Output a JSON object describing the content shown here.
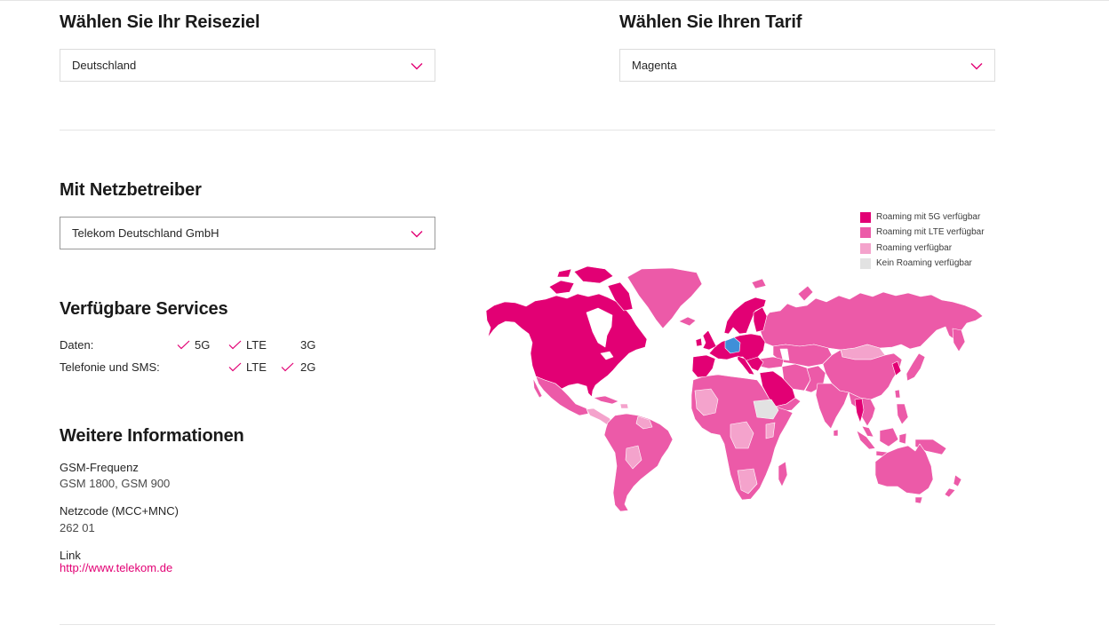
{
  "destination": {
    "heading": "Wählen Sie Ihr Reiseziel",
    "selected": "Deutschland"
  },
  "tariff": {
    "heading": "Wählen Sie Ihren Tarif",
    "selected": "Magenta"
  },
  "operator": {
    "heading": "Mit Netzbetreiber",
    "selected": "Telekom Deutschland GmbH"
  },
  "services": {
    "heading": "Verfügbare Services",
    "rows": [
      {
        "label": "Daten:",
        "items": [
          {
            "name": "5G",
            "available": true
          },
          {
            "name": "LTE",
            "available": true
          },
          {
            "name": "3G",
            "available": false
          }
        ]
      },
      {
        "label": "Telefonie und SMS:",
        "items": [
          {
            "name": "LTE",
            "available": true
          },
          {
            "name": "2G",
            "available": true
          }
        ]
      }
    ]
  },
  "info": {
    "heading": "Weitere Informationen",
    "fields": [
      {
        "label": "GSM-Frequenz",
        "value": "GSM 1800, GSM 900"
      },
      {
        "label": "Netzcode (MCC+MNC)",
        "value": "262 01"
      },
      {
        "label": "Link",
        "value": "http://www.telekom.de"
      }
    ]
  },
  "map": {
    "legend": [
      {
        "label": "Roaming mit 5G verfügbar",
        "color": "#e20074"
      },
      {
        "label": "Roaming mit LTE verfügbar",
        "color": "#ec5aa8"
      },
      {
        "label": "Roaming verfügbar",
        "color": "#f4a3cc"
      },
      {
        "label": "Kein Roaming verfügbar",
        "color": "#e2e2e2"
      }
    ],
    "selected_color": "#3f8fd8"
  },
  "icons": {
    "select_arrow": "chevron-down-icon",
    "service_available": "checkmark-icon"
  },
  "colors": {
    "accent": "#e20074",
    "divider": "#e5e5e5",
    "select_border": "#dcdcdc",
    "select_border_active": "#9a9a9a"
  }
}
